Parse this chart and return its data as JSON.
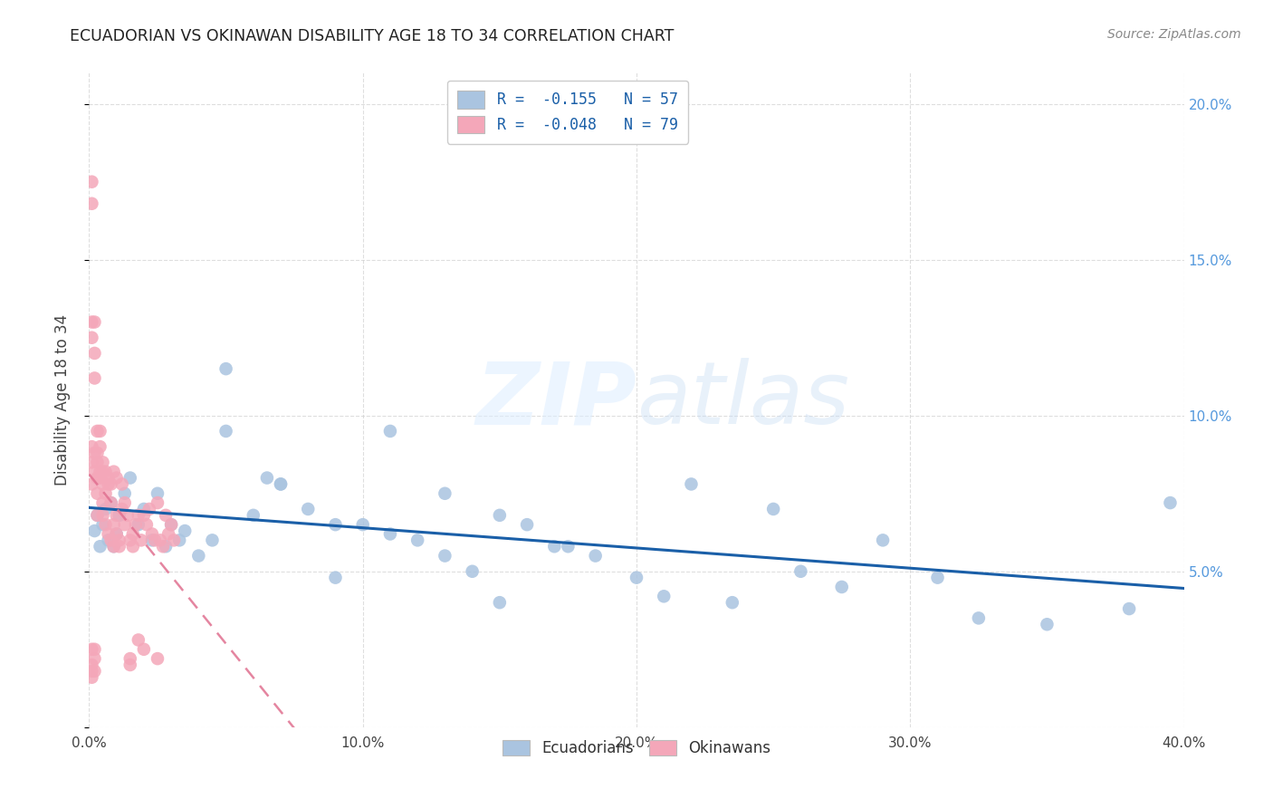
{
  "title": "ECUADORIAN VS OKINAWAN DISABILITY AGE 18 TO 34 CORRELATION CHART",
  "source": "Source: ZipAtlas.com",
  "ylabel_label": "Disability Age 18 to 34",
  "xlim": [
    0.0,
    0.4
  ],
  "ylim": [
    0.0,
    0.21
  ],
  "x_ticks": [
    0.0,
    0.1,
    0.2,
    0.3,
    0.4
  ],
  "x_tick_labels": [
    "0.0%",
    "10.0%",
    "20.0%",
    "30.0%",
    "40.0%"
  ],
  "y_ticks": [
    0.0,
    0.05,
    0.1,
    0.15,
    0.2
  ],
  "y_tick_labels_right": [
    "",
    "5.0%",
    "10.0%",
    "15.0%",
    "20.0%"
  ],
  "ecuadorian_color": "#aac4e0",
  "okinawan_color": "#f4a7b9",
  "ecuadorian_line_color": "#1a5fa8",
  "okinawan_line_color": "#e07090",
  "legend_r_ecuadorian": "R =  -0.155   N = 57",
  "legend_r_okinawan": "R =  -0.048   N = 79",
  "background_color": "#ffffff",
  "grid_color": "#d0d0d0",
  "ecuadorian_scatter_x": [
    0.002,
    0.003,
    0.004,
    0.005,
    0.006,
    0.007,
    0.008,
    0.009,
    0.01,
    0.011,
    0.013,
    0.015,
    0.018,
    0.02,
    0.023,
    0.025,
    0.028,
    0.03,
    0.033,
    0.035,
    0.04,
    0.045,
    0.05,
    0.06,
    0.065,
    0.07,
    0.08,
    0.09,
    0.1,
    0.11,
    0.12,
    0.13,
    0.14,
    0.15,
    0.16,
    0.175,
    0.185,
    0.2,
    0.21,
    0.22,
    0.235,
    0.25,
    0.26,
    0.275,
    0.29,
    0.31,
    0.325,
    0.35,
    0.38,
    0.395,
    0.05,
    0.07,
    0.09,
    0.11,
    0.13,
    0.15,
    0.17
  ],
  "ecuadorian_scatter_y": [
    0.063,
    0.068,
    0.058,
    0.065,
    0.07,
    0.06,
    0.072,
    0.058,
    0.062,
    0.068,
    0.075,
    0.08,
    0.065,
    0.07,
    0.06,
    0.075,
    0.058,
    0.065,
    0.06,
    0.063,
    0.055,
    0.06,
    0.115,
    0.068,
    0.08,
    0.078,
    0.07,
    0.065,
    0.065,
    0.095,
    0.06,
    0.075,
    0.05,
    0.04,
    0.065,
    0.058,
    0.055,
    0.048,
    0.042,
    0.078,
    0.04,
    0.07,
    0.05,
    0.045,
    0.06,
    0.048,
    0.035,
    0.033,
    0.038,
    0.072,
    0.095,
    0.078,
    0.048,
    0.062,
    0.055,
    0.068,
    0.058
  ],
  "okinawan_scatter_x": [
    0.001,
    0.001,
    0.001,
    0.001,
    0.002,
    0.002,
    0.002,
    0.003,
    0.003,
    0.003,
    0.003,
    0.004,
    0.004,
    0.005,
    0.005,
    0.005,
    0.006,
    0.006,
    0.007,
    0.007,
    0.008,
    0.008,
    0.009,
    0.009,
    0.01,
    0.01,
    0.011,
    0.011,
    0.012,
    0.013,
    0.013,
    0.014,
    0.015,
    0.016,
    0.016,
    0.017,
    0.018,
    0.019,
    0.02,
    0.021,
    0.022,
    0.023,
    0.024,
    0.025,
    0.026,
    0.027,
    0.028,
    0.029,
    0.03,
    0.031,
    0.001,
    0.001,
    0.001,
    0.002,
    0.002,
    0.003,
    0.003,
    0.004,
    0.004,
    0.005,
    0.005,
    0.006,
    0.007,
    0.008,
    0.009,
    0.01,
    0.012,
    0.015,
    0.018,
    0.02,
    0.025,
    0.015,
    0.001,
    0.001,
    0.002,
    0.001,
    0.001,
    0.002,
    0.002
  ],
  "okinawan_scatter_y": [
    0.175,
    0.168,
    0.13,
    0.125,
    0.13,
    0.12,
    0.112,
    0.095,
    0.085,
    0.075,
    0.068,
    0.095,
    0.08,
    0.082,
    0.072,
    0.068,
    0.075,
    0.065,
    0.078,
    0.062,
    0.072,
    0.06,
    0.065,
    0.058,
    0.068,
    0.062,
    0.06,
    0.058,
    0.07,
    0.065,
    0.072,
    0.068,
    0.06,
    0.062,
    0.058,
    0.065,
    0.068,
    0.06,
    0.068,
    0.065,
    0.07,
    0.062,
    0.06,
    0.072,
    0.06,
    0.058,
    0.068,
    0.062,
    0.065,
    0.06,
    0.09,
    0.085,
    0.078,
    0.088,
    0.082,
    0.088,
    0.08,
    0.09,
    0.082,
    0.085,
    0.078,
    0.082,
    0.08,
    0.078,
    0.082,
    0.08,
    0.078,
    0.022,
    0.028,
    0.025,
    0.022,
    0.02,
    0.025,
    0.02,
    0.022,
    0.018,
    0.016,
    0.025,
    0.018
  ]
}
